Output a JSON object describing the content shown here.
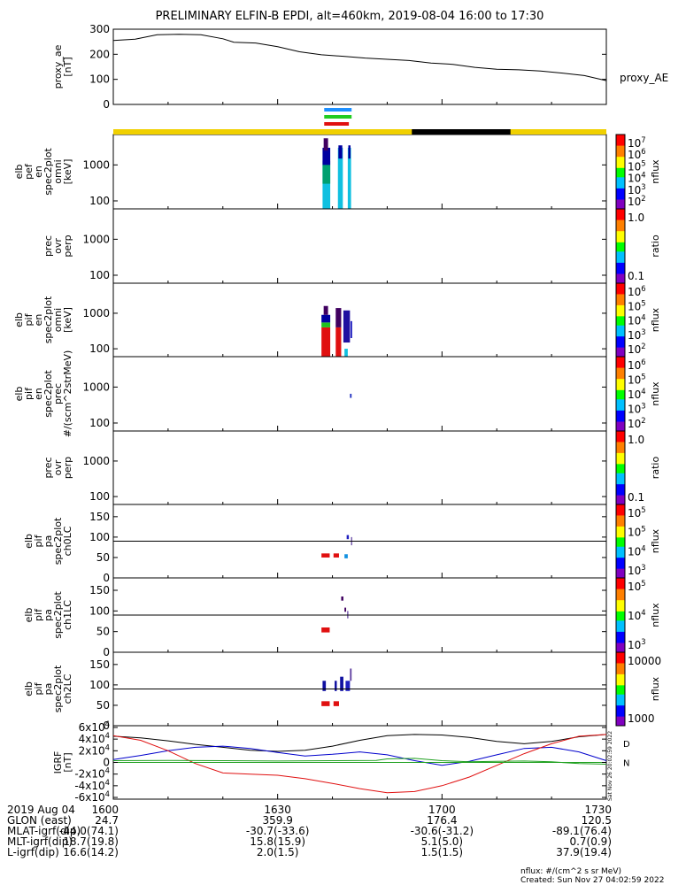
{
  "title": "PRELIMINARY ELFIN-B EPDI, alt=460km, 2019-08-04 16:00 to 17:30",
  "footer": {
    "units_note": "nflux: #/(cm^2 s sr MeV)",
    "created": "Created: Sun Nov 27 04:02:59 2022",
    "side_stamp": "Sat Nov 26 20:02:59 2022"
  },
  "time_axis": {
    "start": "2019-08-04 16:00",
    "end": "2019-08-04 17:30",
    "tick_minutes": [
      0,
      30,
      60,
      90
    ],
    "rows": [
      {
        "label": "2019 Aug 04",
        "values": [
          "1600",
          "1630",
          "1700",
          "1730"
        ]
      },
      {
        "label": "GLON (east)",
        "values": [
          "24.7",
          "359.9",
          "176.4",
          "120.5"
        ]
      },
      {
        "label": "MLAT-igrf(dip)",
        "values": [
          "-44.0(74.1)",
          "-30.7(-33.6)",
          "-30.6(-31.2)",
          "-89.1(76.4)"
        ]
      },
      {
        "label": "MLT-igrf(dip)",
        "values": [
          "18.7(19.8)",
          "15.8(15.9)",
          "5.1(5.0)",
          "0.7(0.9)"
        ]
      },
      {
        "label": "L-igrf(dip)",
        "values": [
          "16.6(14.2)",
          "2.0(1.5)",
          "1.5(1.5)",
          "37.9(19.4)"
        ]
      }
    ]
  },
  "status_bar": {
    "colors": {
      "science": "#f0d000",
      "eclipse": "#000000"
    },
    "eclipse_minutes": [
      54.5,
      72.5
    ],
    "markers": [
      {
        "color": "#1e90ff",
        "start": 38.5,
        "end": 43.5
      },
      {
        "color": "#22cc22",
        "start": 38.5,
        "end": 43.5
      },
      {
        "color": "#e01010",
        "start": 38.5,
        "end": 43.0
      }
    ]
  },
  "chart_data": [
    {
      "type": "line",
      "ylabel": "proxy_ae [nT]",
      "yticks": [
        "300",
        "200",
        "100",
        "0"
      ],
      "ylim": [
        0,
        300
      ],
      "series": [
        {
          "name": "proxy_AE",
          "color": "#000000",
          "x": [
            0,
            4,
            8,
            12,
            16,
            20,
            22,
            26,
            30,
            34,
            38,
            42,
            46,
            50,
            54,
            58,
            62,
            66,
            70,
            74,
            78,
            82,
            86,
            90
          ],
          "y": [
            255,
            260,
            278,
            280,
            278,
            262,
            248,
            245,
            230,
            210,
            198,
            192,
            185,
            180,
            175,
            165,
            160,
            148,
            140,
            138,
            133,
            125,
            115,
            95
          ]
        }
      ]
    },
    {
      "type": "heatmap",
      "ylabel": "elb pef en spec2plot omni [keV]",
      "yscale": "log",
      "yticks": [
        "1000",
        "100"
      ],
      "ylim": [
        60,
        7000
      ],
      "colorbar": {
        "label": "nflux",
        "ticks": [
          "10^7",
          "10^6",
          "10^5",
          "10^4",
          "10^3",
          "10^2"
        ]
      },
      "cells": [
        {
          "t": [
            38.2,
            39.6
          ],
          "e": [
            60,
            1000
          ],
          "color": "#10c0e0"
        },
        {
          "t": [
            38.2,
            39.6
          ],
          "e": [
            300,
            1300
          ],
          "color": "#00a070"
        },
        {
          "t": [
            38.2,
            39.6
          ],
          "e": [
            1000,
            3000
          ],
          "color": "#0000a0"
        },
        {
          "t": [
            38.4,
            39.2
          ],
          "e": [
            2500,
            5500
          ],
          "color": "#400060"
        },
        {
          "t": [
            41.0,
            41.9
          ],
          "e": [
            60,
            3000
          ],
          "color": "#10c0e0"
        },
        {
          "t": [
            41.1,
            41.8
          ],
          "e": [
            1500,
            3500
          ],
          "color": "#0000a0"
        },
        {
          "t": [
            42.8,
            43.4
          ],
          "e": [
            60,
            3000
          ],
          "color": "#10c0e0"
        },
        {
          "t": [
            42.9,
            43.3
          ],
          "e": [
            1500,
            3500
          ],
          "color": "#0000a0"
        }
      ]
    },
    {
      "type": "heatmap",
      "ylabel": "prec ovr perp",
      "yscale": "log",
      "yticks": [
        "1000",
        "100"
      ],
      "ylim": [
        60,
        7000
      ],
      "colorbar": {
        "label": "ratio",
        "ticks": [
          "1.0",
          "0.1"
        ]
      },
      "cells": []
    },
    {
      "type": "heatmap",
      "ylabel": "elb pif en spec2plot omni [keV]",
      "yscale": "log",
      "yticks": [
        "1000",
        "100"
      ],
      "ylim": [
        60,
        7000
      ],
      "colorbar": {
        "label": "nflux",
        "ticks": [
          "10^6",
          "10^5",
          "10^4",
          "10^3",
          "10^2"
        ]
      },
      "cells": [
        {
          "t": [
            38.0,
            39.6
          ],
          "e": [
            60,
            400
          ],
          "color": "#e01010"
        },
        {
          "t": [
            38.0,
            39.6
          ],
          "e": [
            400,
            550
          ],
          "color": "#20c020"
        },
        {
          "t": [
            38.0,
            39.6
          ],
          "e": [
            550,
            900
          ],
          "color": "#0000a0"
        },
        {
          "t": [
            38.4,
            39.2
          ],
          "e": [
            900,
            1600
          ],
          "color": "#400060"
        },
        {
          "t": [
            40.6,
            41.6
          ],
          "e": [
            60,
            400
          ],
          "color": "#e01010"
        },
        {
          "t": [
            40.6,
            41.6
          ],
          "e": [
            400,
            1400
          ],
          "color": "#400060"
        },
        {
          "t": [
            42.0,
            43.2
          ],
          "e": [
            150,
            1200
          ],
          "color": "#2010a0"
        },
        {
          "t": [
            42.2,
            42.8
          ],
          "e": [
            60,
            100
          ],
          "color": "#10c0e0"
        },
        {
          "t": [
            43.3,
            43.6
          ],
          "e": [
            200,
            600
          ],
          "color": "#2020c0"
        }
      ]
    },
    {
      "type": "heatmap",
      "ylabel": "elb pif en spec2plot prec #/(scm^2strMeV)",
      "yscale": "log",
      "yticks": [
        "1000",
        "100"
      ],
      "ylim": [
        60,
        7000
      ],
      "colorbar": {
        "label": "nflux",
        "ticks": [
          "10^6",
          "10^5",
          "10^4",
          "10^3",
          "10^2"
        ]
      },
      "cells": [
        {
          "t": [
            43.2,
            43.5
          ],
          "e": [
            500,
            650
          ],
          "color": "#2030c0"
        }
      ]
    },
    {
      "type": "heatmap",
      "ylabel": "prec ovr perp",
      "yscale": "log",
      "yticks": [
        "1000",
        "100"
      ],
      "ylim": [
        60,
        7000
      ],
      "colorbar": {
        "label": "ratio",
        "ticks": [
          "1.0",
          "0.1"
        ]
      },
      "cells": []
    },
    {
      "type": "heatmap",
      "ylabel": "elb pif pa spec2plot ch0LC",
      "yscale": "linear",
      "yticks": [
        "150",
        "100",
        "50",
        "0"
      ],
      "ylim": [
        0,
        180
      ],
      "hline": 90,
      "colorbar": {
        "label": "nflux",
        "ticks": [
          "10^5",
          "10^5",
          "10^4",
          "10^3"
        ]
      },
      "cells": [
        {
          "t": [
            38.0,
            39.5
          ],
          "e": [
            50,
            60
          ],
          "color": "#e01010"
        },
        {
          "t": [
            40.2,
            41.2
          ],
          "e": [
            50,
            60
          ],
          "color": "#e01010"
        },
        {
          "t": [
            42.2,
            42.8
          ],
          "e": [
            48,
            58
          ],
          "color": "#1090e0"
        },
        {
          "t": [
            42.6,
            43.0
          ],
          "e": [
            95,
            105
          ],
          "color": "#2020c0"
        },
        {
          "t": [
            43.4,
            43.6
          ],
          "e": [
            80,
            100
          ],
          "color": "#6040a0"
        }
      ]
    },
    {
      "type": "heatmap",
      "ylabel": "elb pif pa spec2plot ch1LC",
      "yscale": "linear",
      "yticks": [
        "150",
        "100",
        "50",
        "0"
      ],
      "ylim": [
        0,
        180
      ],
      "hline": 90,
      "colorbar": {
        "label": "nflux",
        "ticks": [
          "10^5",
          "10^4",
          "10^3"
        ]
      },
      "cells": [
        {
          "t": [
            38.0,
            39.5
          ],
          "e": [
            48,
            60
          ],
          "color": "#e01010"
        },
        {
          "t": [
            41.6,
            42.0
          ],
          "e": [
            125,
            135
          ],
          "color": "#400060"
        },
        {
          "t": [
            42.2,
            42.5
          ],
          "e": [
            98,
            108
          ],
          "color": "#400060"
        },
        {
          "t": [
            42.7,
            42.9
          ],
          "e": [
            82,
            100
          ],
          "color": "#6040a0"
        }
      ]
    },
    {
      "type": "heatmap",
      "ylabel": "elb pif pa spec2plot ch2LC",
      "yscale": "linear",
      "yticks": [
        "150",
        "100",
        "50",
        "0"
      ],
      "ylim": [
        0,
        180
      ],
      "hline": 90,
      "colorbar": {
        "label": "nflux",
        "ticks": [
          "10000",
          "1000"
        ]
      },
      "cells": [
        {
          "t": [
            38.0,
            39.5
          ],
          "e": [
            48,
            60
          ],
          "color": "#e01010"
        },
        {
          "t": [
            40.2,
            41.2
          ],
          "e": [
            48,
            60
          ],
          "color": "#e01010"
        },
        {
          "t": [
            38.2,
            38.8
          ],
          "e": [
            85,
            110
          ],
          "color": "#1010a0"
        },
        {
          "t": [
            40.4,
            40.8
          ],
          "e": [
            85,
            110
          ],
          "color": "#1010a0"
        },
        {
          "t": [
            41.4,
            42.0
          ],
          "e": [
            85,
            120
          ],
          "color": "#1010a0"
        },
        {
          "t": [
            42.4,
            43.2
          ],
          "e": [
            85,
            110
          ],
          "color": "#2020c0"
        },
        {
          "t": [
            43.2,
            43.5
          ],
          "e": [
            110,
            140
          ],
          "color": "#6040a0"
        }
      ]
    },
    {
      "type": "line",
      "ylabel": "IGRF [nT]",
      "yticks": [
        "6x10^4",
        "4x10^4",
        "2x10^4",
        "0",
        "-2x10^4",
        "-4x10^4",
        "-6x10^4"
      ],
      "ylim": [
        -63000,
        63000
      ],
      "series": [
        {
          "name": "D",
          "color": "#000000",
          "x": [
            0,
            5,
            10,
            15,
            20,
            25,
            30,
            35,
            40,
            45,
            50,
            55,
            60,
            65,
            70,
            75,
            80,
            85,
            90
          ],
          "y": [
            45000,
            42000,
            37000,
            31000,
            26000,
            21000,
            19000,
            21000,
            28000,
            38000,
            46000,
            48000,
            47000,
            43000,
            36000,
            32000,
            36000,
            44000,
            48000
          ]
        },
        {
          "name": "",
          "color": "#0000cc",
          "x": [
            0,
            5,
            10,
            15,
            20,
            25,
            30,
            35,
            40,
            45,
            50,
            55,
            60,
            65,
            70,
            75,
            80,
            85,
            90
          ],
          "y": [
            5000,
            12000,
            20000,
            26000,
            28000,
            24000,
            17000,
            11000,
            14000,
            18000,
            13000,
            3000,
            -5000,
            2000,
            13000,
            24000,
            26000,
            18000,
            3000
          ]
        },
        {
          "name": "",
          "color": "#e01010",
          "x": [
            0,
            5,
            10,
            15,
            20,
            25,
            30,
            35,
            40,
            45,
            50,
            55,
            60,
            65,
            70,
            75,
            80,
            85,
            90
          ],
          "y": [
            46000,
            38000,
            20000,
            -2000,
            -18000,
            -20000,
            -22000,
            -28000,
            -36000,
            -45000,
            -52000,
            -50000,
            -40000,
            -25000,
            -5000,
            15000,
            32000,
            45000,
            48000
          ]
        },
        {
          "name": "N",
          "color": "#20a020",
          "x": [
            0,
            10,
            20,
            30,
            40,
            48,
            50,
            55,
            60,
            65,
            70,
            75,
            80,
            85,
            90
          ],
          "y": [
            3000,
            3500,
            3000,
            2500,
            3000,
            3500,
            6000,
            7000,
            3000,
            1000,
            2000,
            2500,
            1000,
            -2000,
            -3000
          ]
        }
      ]
    }
  ]
}
